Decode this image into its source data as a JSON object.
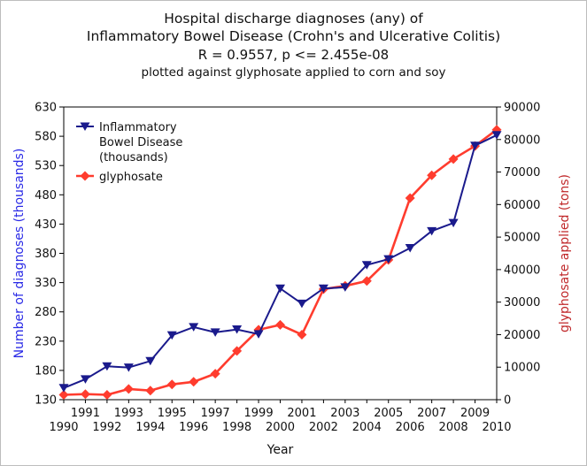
{
  "chart_data": {
    "type": "line",
    "title_lines": [
      "Hospital discharge diagnoses (any) of",
      "Inflammatory Bowel Disease (Crohn's and Ulcerative Colitis)",
      "R = 0.9557, p <= 2.455e-08",
      "plotted against glyphosate applied to corn and soy"
    ],
    "xlabel": "Year",
    "ylabel_left": "Number of diagnoses (thousands)",
    "ylabel_right": "glyphosate applied (tons)",
    "x": [
      1990,
      1991,
      1992,
      1993,
      1994,
      1995,
      1996,
      1997,
      1998,
      1999,
      2000,
      2001,
      2002,
      2003,
      2004,
      2005,
      2006,
      2007,
      2008,
      2009,
      2010
    ],
    "x_ticks_lower": [
      "1990",
      "1992",
      "1994",
      "1996",
      "1998",
      "2000",
      "2002",
      "2004",
      "2006",
      "2008",
      "2010"
    ],
    "x_ticks_upper": [
      "1991",
      "1993",
      "1995",
      "1997",
      "1999",
      "2001",
      "2003",
      "2005",
      "2007",
      "2009"
    ],
    "xlim": [
      1990,
      2010
    ],
    "ylim_left": [
      130,
      630
    ],
    "y_ticks_left": [
      "130",
      "180",
      "230",
      "280",
      "330",
      "380",
      "430",
      "480",
      "530",
      "580",
      "630"
    ],
    "ylim_right": [
      0,
      90000
    ],
    "y_ticks_right": [
      "0",
      "10000",
      "20000",
      "30000",
      "40000",
      "50000",
      "60000",
      "70000",
      "80000",
      "90000"
    ],
    "series": [
      {
        "name": "Inflammatory Bowel Disease (thousands)",
        "legend_lines": [
          "Inflammatory",
          "Bowel Disease",
          "(thousands)"
        ],
        "axis": "left",
        "color": "#1a1a8c",
        "marker": "triangle-down",
        "values": [
          150,
          165,
          187,
          185,
          196,
          240,
          254,
          245,
          250,
          242,
          320,
          294,
          320,
          322,
          360,
          370,
          389,
          418,
          432,
          564,
          582
        ]
      },
      {
        "name": "glyphosate",
        "legend_lines": [
          "glyphosate"
        ],
        "axis": "right",
        "color": "#ff3c2e",
        "marker": "diamond",
        "values": [
          1500,
          1700,
          1500,
          3300,
          2800,
          4700,
          5500,
          8000,
          15000,
          21500,
          23000,
          20000,
          34000,
          35000,
          36500,
          43000,
          62000,
          69000,
          74000,
          78000,
          83000
        ]
      }
    ],
    "legend_position": "top-left",
    "grid": false
  },
  "colors": {
    "left_axis_label": "#2a2ae6",
    "right_axis_label": "#c0282a",
    "axis": "#000000"
  }
}
